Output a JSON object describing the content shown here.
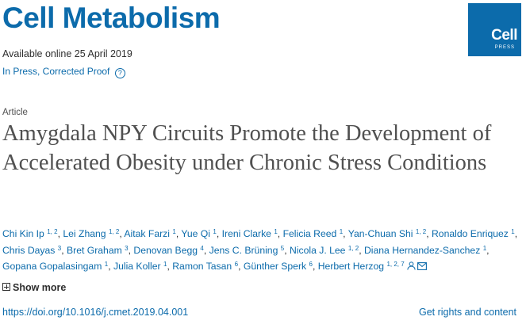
{
  "journal": {
    "name": "Cell Metabolism"
  },
  "logo": {
    "text": "Cell",
    "sub": "PRESS"
  },
  "availability": "Available online 25 April 2019",
  "status": {
    "label": "In Press, Corrected Proof",
    "help_glyph": "?"
  },
  "article_type": "Article",
  "title": "Amygdala NPY Circuits Promote the Development of Accelerated Obesity under Chronic Stress Conditions",
  "authors": [
    {
      "name": "Chi Kin Ip",
      "aff": "1, 2"
    },
    {
      "name": "Lei Zhang",
      "aff": "1, 2"
    },
    {
      "name": "Aitak Farzi",
      "aff": "1"
    },
    {
      "name": "Yue Qi",
      "aff": "1"
    },
    {
      "name": "Ireni Clarke",
      "aff": "1"
    },
    {
      "name": "Felicia Reed",
      "aff": "1"
    },
    {
      "name": "Yan-Chuan Shi",
      "aff": "1, 2"
    },
    {
      "name": "Ronaldo Enriquez",
      "aff": "1"
    },
    {
      "name": "Chris Dayas",
      "aff": "3"
    },
    {
      "name": "Bret Graham",
      "aff": "3"
    },
    {
      "name": "Denovan Begg",
      "aff": "4"
    },
    {
      "name": "Jens C. Brüning",
      "aff": "5"
    },
    {
      "name": "Nicola J. Lee",
      "aff": "1, 2"
    },
    {
      "name": "Diana Hernandez-Sanchez",
      "aff": "1"
    },
    {
      "name": "Gopana Gopalasingam",
      "aff": "1"
    },
    {
      "name": "Julia Koller",
      "aff": "1"
    },
    {
      "name": "Ramon Tasan",
      "aff": "6"
    },
    {
      "name": "Günther Sperk",
      "aff": "6"
    },
    {
      "name": "Herbert Herzog",
      "aff": "1, 2, 7"
    }
  ],
  "show_more": "Show more",
  "doi": "https://doi.org/10.1016/j.cmet.2019.04.001",
  "rights": "Get rights and content",
  "colors": {
    "accent": "#0c6bab",
    "text": "#2e2e2e",
    "title": "#505050"
  },
  "icons": {
    "author": "person-icon",
    "email": "envelope-icon"
  }
}
